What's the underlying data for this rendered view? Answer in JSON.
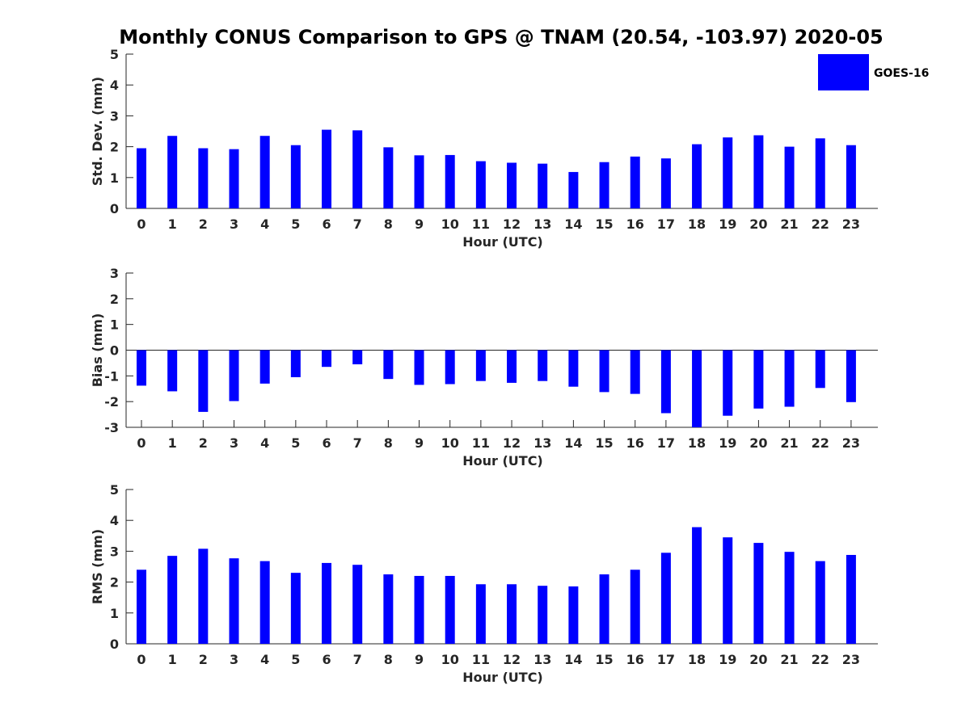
{
  "chart_data": [
    {
      "type": "bar",
      "title": "Monthly CONUS Comparison to GPS @ TNAM (20.54, -103.97) 2020-05",
      "xlabel": "Hour (UTC)",
      "ylabel": "Std. Dev. (mm)",
      "ylim": [
        0,
        5
      ],
      "yticks": [
        0,
        1,
        2,
        3,
        4,
        5
      ],
      "categories": [
        "0",
        "1",
        "2",
        "3",
        "4",
        "5",
        "6",
        "7",
        "8",
        "9",
        "10",
        "11",
        "12",
        "13",
        "14",
        "15",
        "16",
        "17",
        "18",
        "19",
        "20",
        "21",
        "22",
        "23"
      ],
      "series": [
        {
          "name": "GOES-16",
          "color": "#0000ff",
          "values": [
            1.95,
            2.35,
            1.95,
            1.92,
            2.35,
            2.05,
            2.55,
            2.53,
            1.98,
            1.72,
            1.73,
            1.53,
            1.48,
            1.45,
            1.18,
            1.5,
            1.68,
            1.62,
            2.08,
            2.3,
            2.37,
            2.0,
            2.27,
            2.05
          ]
        }
      ],
      "legend": "top-right"
    },
    {
      "type": "bar",
      "xlabel": "Hour (UTC)",
      "ylabel": "Bias (mm)",
      "ylim": [
        -3,
        3
      ],
      "yticks": [
        -3,
        -2,
        -1,
        0,
        1,
        2,
        3
      ],
      "categories": [
        "0",
        "1",
        "2",
        "3",
        "4",
        "5",
        "6",
        "7",
        "8",
        "9",
        "10",
        "11",
        "12",
        "13",
        "14",
        "15",
        "16",
        "17",
        "18",
        "19",
        "20",
        "21",
        "22",
        "23"
      ],
      "series": [
        {
          "name": "GOES-16",
          "color": "#0000ff",
          "values": [
            -1.38,
            -1.6,
            -2.4,
            -1.98,
            -1.3,
            -1.05,
            -0.65,
            -0.55,
            -1.12,
            -1.35,
            -1.32,
            -1.2,
            -1.27,
            -1.2,
            -1.42,
            -1.63,
            -1.7,
            -2.45,
            -3.0,
            -2.55,
            -2.27,
            -2.2,
            -1.47,
            -2.02
          ]
        }
      ]
    },
    {
      "type": "bar",
      "xlabel": "Hour (UTC)",
      "ylabel": "RMS (mm)",
      "ylim": [
        0,
        5
      ],
      "yticks": [
        0,
        1,
        2,
        3,
        4,
        5
      ],
      "categories": [
        "0",
        "1",
        "2",
        "3",
        "4",
        "5",
        "6",
        "7",
        "8",
        "9",
        "10",
        "11",
        "12",
        "13",
        "14",
        "15",
        "16",
        "17",
        "18",
        "19",
        "20",
        "21",
        "22",
        "23"
      ],
      "series": [
        {
          "name": "GOES-16",
          "color": "#0000ff",
          "values": [
            2.4,
            2.85,
            3.08,
            2.77,
            2.68,
            2.3,
            2.62,
            2.56,
            2.25,
            2.2,
            2.2,
            1.93,
            1.93,
            1.88,
            1.86,
            2.25,
            2.4,
            2.95,
            3.78,
            3.45,
            3.27,
            2.98,
            2.68,
            2.88
          ]
        }
      ]
    }
  ]
}
